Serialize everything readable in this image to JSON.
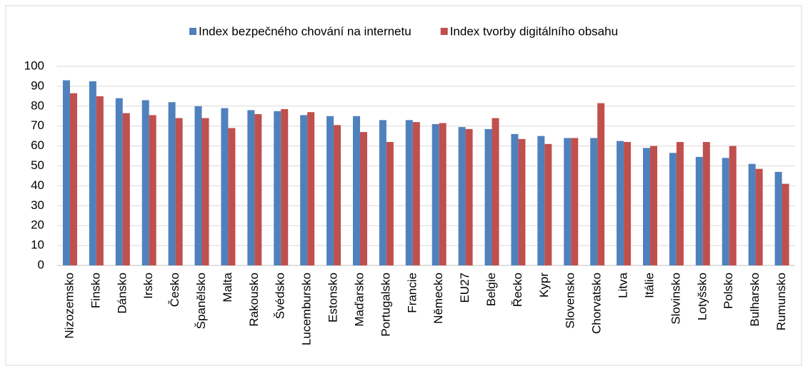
{
  "chart_data": {
    "type": "bar",
    "categories": [
      "Nizozemsko",
      "Finsko",
      "Dánsko",
      "Irsko",
      "Česko",
      "Španělsko",
      "Malta",
      "Rakousko",
      "Švédsko",
      "Lucembursko",
      "Estonsko",
      "Maďarsko",
      "Portugalsko",
      "Francie",
      "Německo",
      "EU27",
      "Belgie",
      "Řecko",
      "Kypr",
      "Slovensko",
      "Chorvatsko",
      "Litva",
      "Itálie",
      "Slovinsko",
      "Lotyšsko",
      "Polsko",
      "Bulharsko",
      "Rumunsko"
    ],
    "series": [
      {
        "name": "Index bezpečného chování na internetu",
        "color": "#4f81bd",
        "values": [
          93,
          92.5,
          84,
          83,
          82,
          80,
          79,
          78,
          77.5,
          75.5,
          75,
          75,
          73,
          73,
          71,
          69.5,
          68.5,
          66,
          65,
          64,
          64,
          62.5,
          59,
          56.5,
          54.5,
          54,
          51,
          47
        ]
      },
      {
        "name": "Index tvorby digitálního obsahu",
        "color": "#c0504d",
        "values": [
          86.5,
          85,
          76.5,
          75.5,
          74,
          74,
          69,
          76,
          78.5,
          77,
          70.5,
          67,
          62,
          72,
          71.5,
          68.5,
          74,
          63.5,
          61,
          64,
          81.5,
          62,
          60,
          62,
          62,
          60,
          48.5,
          41
        ]
      }
    ],
    "ylim": [
      0,
      100
    ],
    "yticks": [
      0,
      10,
      20,
      30,
      40,
      50,
      60,
      70,
      80,
      90,
      100
    ],
    "grid": true,
    "legend": "top"
  }
}
